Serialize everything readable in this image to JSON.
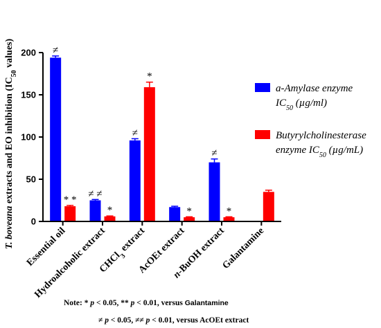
{
  "chart_data": {
    "type": "bar",
    "ylabel_parts": {
      "species": "T. boveana",
      "text": " extracts and EO inhibition (IC",
      "sub": "50",
      "end": " values)"
    },
    "ylim": [
      0,
      200
    ],
    "yticks": [
      0,
      50,
      100,
      150,
      200
    ],
    "categories": [
      {
        "main": "Essential oil",
        "prefix": "",
        "sub": "",
        "tail": ""
      },
      {
        "main": "Hydroalcoholic extract",
        "prefix": "",
        "sub": "",
        "tail": ""
      },
      {
        "main": "CHCl",
        "prefix": "",
        "sub": "3",
        "tail": " extract"
      },
      {
        "main": "AcOEt extract",
        "prefix": "",
        "sub": "",
        "tail": ""
      },
      {
        "main": "-BuOH extract",
        "prefix": "n",
        "sub": "",
        "tail": ""
      },
      {
        "main": "Galantamine",
        "prefix": "",
        "sub": "",
        "tail": ""
      }
    ],
    "series": [
      {
        "legend_main": "a-Amylase enzyme",
        "legend_line2": "IC",
        "legend_sub": "50",
        "legend_unit": " (µg/ml)",
        "color": "#0000ff",
        "values": [
          194,
          25,
          96,
          17,
          70,
          null
        ],
        "errors": [
          2,
          1,
          2,
          1,
          4,
          null
        ],
        "annotations": [
          "≠",
          "≠ ≠",
          "≠",
          "",
          "≠",
          ""
        ]
      },
      {
        "legend_main": "Butyrylcholinesterase",
        "legend_line2": "enzyme IC",
        "legend_sub": "50",
        "legend_unit": " (µg/mL)",
        "color": "#ff0000",
        "values": [
          18,
          6,
          159,
          5,
          5,
          35
        ],
        "errors": [
          1,
          0.5,
          6,
          0.5,
          0.5,
          2
        ],
        "annotations": [
          "* *",
          "*",
          "*",
          "*",
          "*",
          ""
        ]
      }
    ]
  },
  "notes": {
    "line1_prefix": "Note: * ",
    "line1_p1": "p",
    "line1_mid1": " < 0.05, ** ",
    "line1_p2": "p",
    "line1_mid2": " < 0.01, versus ",
    "line1_ref": "Galantamine",
    "line2_prefix": "≠ ",
    "line2_p1": "p",
    "line2_mid1": " < 0.05, ≠≠ ",
    "line2_p2": "p",
    "line2_mid2": " < 0.01, versus AcOEt extract"
  }
}
